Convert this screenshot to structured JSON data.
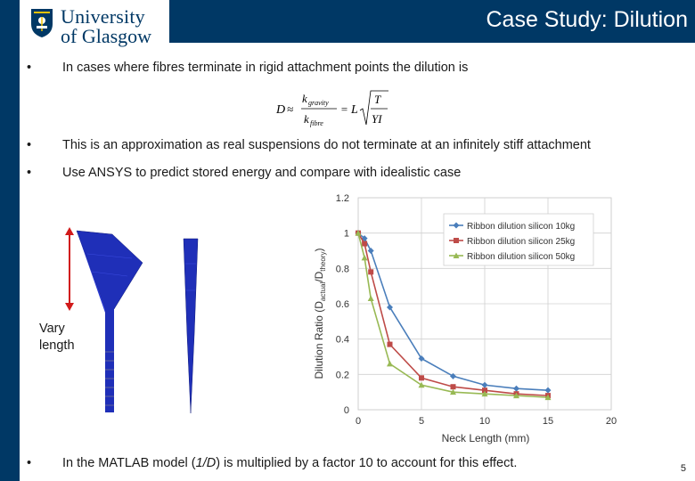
{
  "header": {
    "logo_line1": "University",
    "logo_line2": "of Glasgow",
    "title": "Case Study: Dilution"
  },
  "bullets": {
    "b1": "In cases where fibres terminate in rigid attachment points the dilution is",
    "b2": "This is an approximation as real suspensions do not terminate at an infinitely stiff attachment",
    "b3": "Use ANSYS to predict stored energy and compare with idealistic case",
    "b4_pre": "In the MATLAB model (",
    "b4_em": "1/D",
    "b4_post": ") is multiplied by a factor 10 to account for this effect.",
    "bullet_symbol": "•"
  },
  "formula": {
    "lhs": "D",
    "approx": "≈",
    "num": "k",
    "num_sub": "gravity",
    "den": "k",
    "den_sub": "fibre",
    "eq": "=",
    "L": "L",
    "root_num": "T",
    "root_den": "YI"
  },
  "annotation": {
    "vary_line1": "Vary",
    "vary_line2": "length"
  },
  "page_number": "5",
  "colors": {
    "brand": "#003865",
    "series_blue": "#4a7ebb",
    "series_red": "#be4b48",
    "series_green": "#98b954",
    "model_blue": "#1f2fb8",
    "arrow_red": "#d11a1a"
  },
  "chart_data": {
    "type": "line",
    "xlabel": "Neck Length (mm)",
    "ylabel_pre": "Dilution Ratio (D",
    "ylabel_sub1": "actual",
    "ylabel_mid": "/D",
    "ylabel_sub2": "theory",
    "ylabel_post": ")",
    "xlim": [
      0,
      20
    ],
    "ylim": [
      0,
      1.2
    ],
    "xticks": [
      "0",
      "5",
      "10",
      "15",
      "20"
    ],
    "yticks": [
      "0",
      "0.2",
      "0.4",
      "0.6",
      "0.8",
      "1",
      "1.2"
    ],
    "grid": true,
    "legend_position": "top-right",
    "series": [
      {
        "name": "Ribbon dilution silicon 10kg",
        "marker": "diamond",
        "x": [
          0,
          0.5,
          1,
          2.5,
          5,
          7.5,
          10,
          12.5,
          15
        ],
        "y": [
          1.0,
          0.97,
          0.9,
          0.58,
          0.29,
          0.19,
          0.14,
          0.12,
          0.11
        ]
      },
      {
        "name": "Ribbon dilution silicon 25kg",
        "marker": "square",
        "x": [
          0,
          0.5,
          1,
          2.5,
          5,
          7.5,
          10,
          12.5,
          15
        ],
        "y": [
          1.0,
          0.94,
          0.78,
          0.37,
          0.18,
          0.13,
          0.11,
          0.09,
          0.08
        ]
      },
      {
        "name": "Ribbon dilution silicon 50kg",
        "marker": "triangle",
        "x": [
          0,
          0.5,
          1,
          2.5,
          5,
          7.5,
          10,
          12.5,
          15
        ],
        "y": [
          1.0,
          0.86,
          0.63,
          0.26,
          0.14,
          0.1,
          0.09,
          0.08,
          0.07
        ]
      }
    ]
  }
}
